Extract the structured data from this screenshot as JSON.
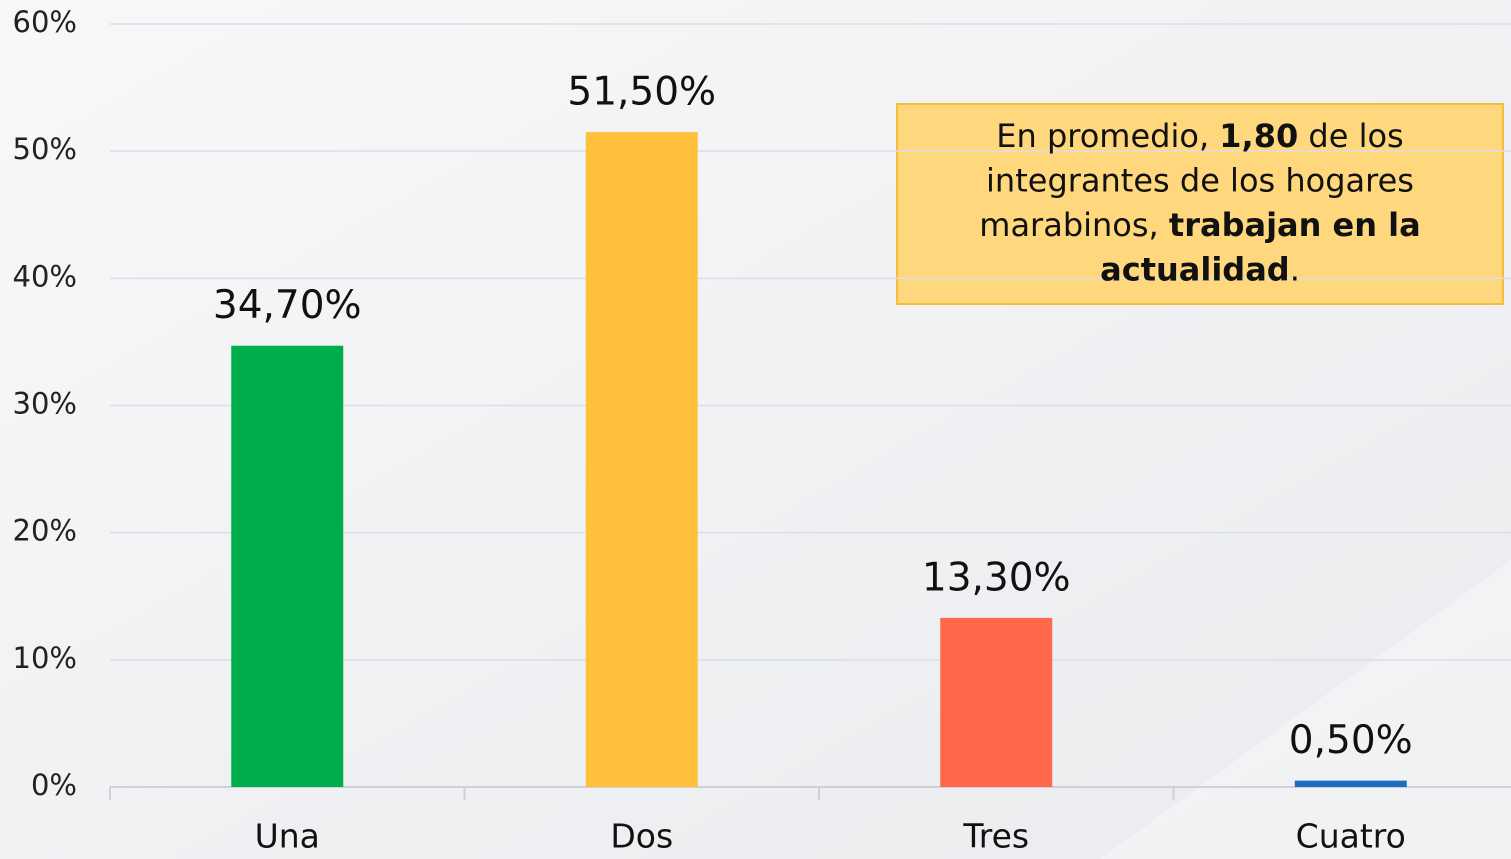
{
  "chart_data": {
    "type": "bar",
    "categories": [
      "Una",
      "Dos",
      "Tres",
      "Cuatro"
    ],
    "values": [
      34.7,
      51.5,
      13.3,
      0.5
    ],
    "value_labels": [
      "34,70%",
      "51,50%",
      "13,30%",
      "0,50%"
    ],
    "colors": [
      "#00ad4d",
      "#ffc13b",
      "#ff684b",
      "#1b6fc1"
    ],
    "ylim": [
      0,
      60
    ],
    "yticks": [
      {
        "value": 0,
        "label": "0%"
      },
      {
        "value": 10,
        "label": "10%"
      },
      {
        "value": 20,
        "label": "20%"
      },
      {
        "value": 30,
        "label": "30%"
      },
      {
        "value": 40,
        "label": "40%"
      },
      {
        "value": 50,
        "label": "50%"
      },
      {
        "value": 60,
        "label": "60%"
      }
    ],
    "grid": true,
    "annotation": [
      [
        {
          "text": "En promedio, ",
          "bold": false
        },
        {
          "text": "1,80",
          "bold": true
        },
        {
          "text": " de los",
          "bold": false
        }
      ],
      [
        {
          "text": "integrantes de los hogares",
          "bold": false
        }
      ],
      [
        {
          "text": "marabinos, ",
          "bold": false
        },
        {
          "text": "trabajan en la",
          "bold": true
        }
      ],
      [
        {
          "text": "actualidad",
          "bold": true
        },
        {
          "text": ".",
          "bold": false
        }
      ]
    ]
  }
}
